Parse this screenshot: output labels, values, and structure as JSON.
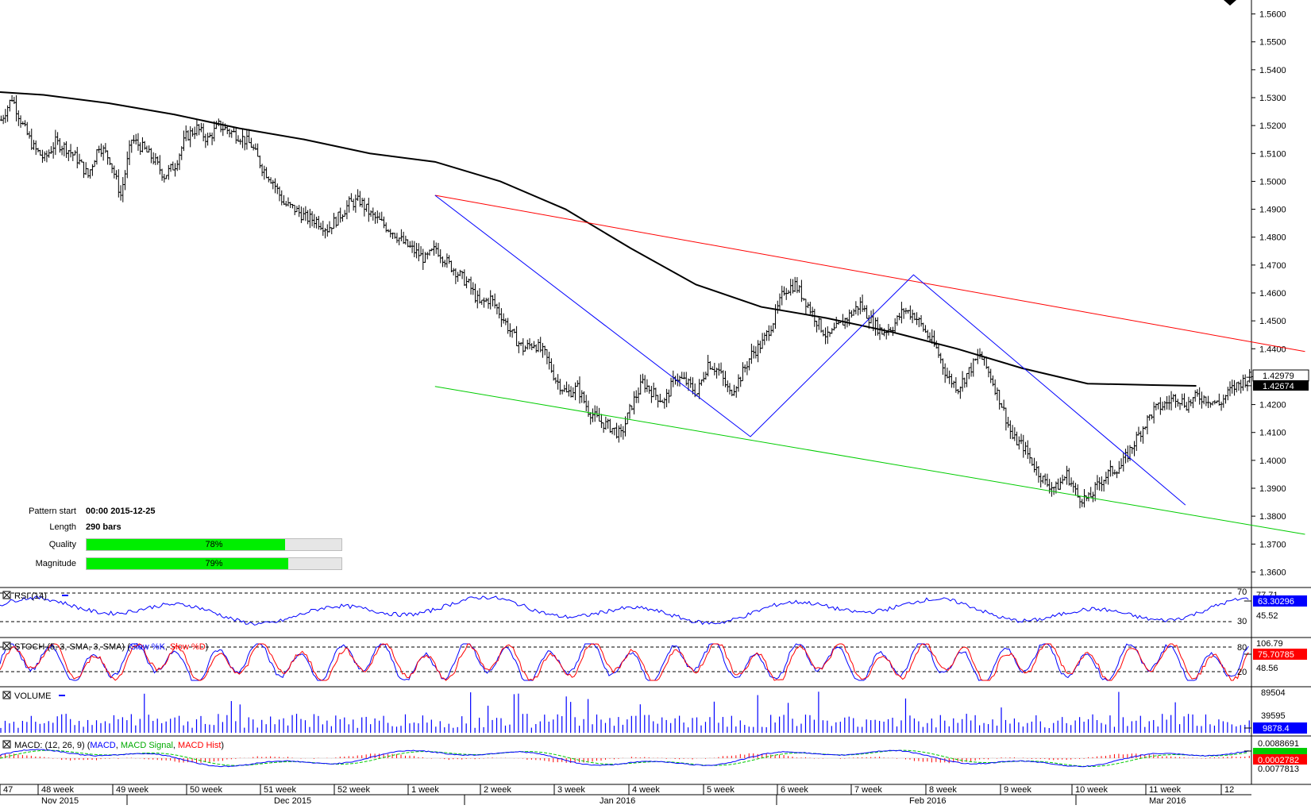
{
  "chart_data": {
    "type": "line",
    "main": {
      "ylim": [
        1.355,
        1.565
      ],
      "price_ticks": [
        "1.5600",
        "1.5500",
        "1.5400",
        "1.5300",
        "1.5200",
        "1.5100",
        "1.5000",
        "1.4900",
        "1.4800",
        "1.4700",
        "1.4600",
        "1.4500",
        "1.4400",
        "1.4300",
        "1.4200",
        "1.4100",
        "1.4000",
        "1.3900",
        "1.3800",
        "1.3700",
        "1.3600"
      ],
      "current_price_label": "1.42979",
      "current_price": 1.42979,
      "ma_value_label": "1.42674",
      "ma_value": 1.42674,
      "ma_series": [
        [
          0,
          1.532
        ],
        [
          20,
          1.531
        ],
        [
          50,
          1.528
        ],
        [
          80,
          1.524
        ],
        [
          110,
          1.519
        ],
        [
          140,
          1.515
        ],
        [
          170,
          1.51
        ],
        [
          200,
          1.507
        ],
        [
          230,
          1.5
        ],
        [
          260,
          1.49
        ],
        [
          290,
          1.476
        ],
        [
          320,
          1.463
        ],
        [
          350,
          1.455
        ],
        [
          380,
          1.451
        ],
        [
          410,
          1.446
        ],
        [
          440,
          1.44
        ],
        [
          470,
          1.433
        ],
        [
          500,
          1.4275
        ],
        [
          530,
          1.427
        ],
        [
          550,
          1.4267
        ]
      ],
      "bar_path": [
        [
          0,
          1.522
        ],
        [
          5,
          1.53
        ],
        [
          10,
          1.52
        ],
        [
          15,
          1.512
        ],
        [
          20,
          1.508
        ],
        [
          25,
          1.514
        ],
        [
          30,
          1.512
        ],
        [
          35,
          1.508
        ],
        [
          40,
          1.502
        ],
        [
          45,
          1.513
        ],
        [
          50,
          1.508
        ],
        [
          55,
          1.495
        ],
        [
          60,
          1.515
        ],
        [
          65,
          1.512
        ],
        [
          70,
          1.508
        ],
        [
          75,
          1.502
        ],
        [
          80,
          1.506
        ],
        [
          85,
          1.516
        ],
        [
          90,
          1.519
        ],
        [
          95,
          1.515
        ],
        [
          100,
          1.52
        ],
        [
          105,
          1.518
        ],
        [
          110,
          1.516
        ],
        [
          115,
          1.513
        ],
        [
          120,
          1.505
        ],
        [
          125,
          1.5
        ],
        [
          130,
          1.492
        ],
        [
          135,
          1.49
        ],
        [
          140,
          1.487
        ],
        [
          145,
          1.486
        ],
        [
          150,
          1.483
        ],
        [
          155,
          1.487
        ],
        [
          160,
          1.492
        ],
        [
          165,
          1.493
        ],
        [
          170,
          1.488
        ],
        [
          175,
          1.485
        ],
        [
          180,
          1.482
        ],
        [
          185,
          1.478
        ],
        [
          190,
          1.475
        ],
        [
          195,
          1.472
        ],
        [
          200,
          1.476
        ],
        [
          205,
          1.471
        ],
        [
          210,
          1.467
        ],
        [
          215,
          1.463
        ],
        [
          220,
          1.456
        ],
        [
          225,
          1.458
        ],
        [
          230,
          1.452
        ],
        [
          235,
          1.445
        ],
        [
          240,
          1.44
        ],
        [
          245,
          1.442
        ],
        [
          250,
          1.438
        ],
        [
          255,
          1.429
        ],
        [
          260,
          1.424
        ],
        [
          265,
          1.426
        ],
        [
          270,
          1.418
        ],
        [
          275,
          1.414
        ],
        [
          280,
          1.412
        ],
        [
          285,
          1.409
        ],
        [
          290,
          1.42
        ],
        [
          295,
          1.428
        ],
        [
          300,
          1.424
        ],
        [
          305,
          1.421
        ],
        [
          310,
          1.43
        ],
        [
          315,
          1.428
        ],
        [
          320,
          1.424
        ],
        [
          325,
          1.435
        ],
        [
          330,
          1.432
        ],
        [
          335,
          1.424
        ],
        [
          340,
          1.43
        ],
        [
          345,
          1.438
        ],
        [
          350,
          1.442
        ],
        [
          355,
          1.45
        ],
        [
          360,
          1.461
        ],
        [
          365,
          1.463
        ],
        [
          370,
          1.457
        ],
        [
          375,
          1.45
        ],
        [
          380,
          1.444
        ],
        [
          385,
          1.448
        ],
        [
          390,
          1.452
        ],
        [
          395,
          1.456
        ],
        [
          400,
          1.45
        ],
        [
          405,
          1.446
        ],
        [
          410,
          1.448
        ],
        [
          415,
          1.454
        ],
        [
          420,
          1.452
        ],
        [
          425,
          1.446
        ],
        [
          430,
          1.44
        ],
        [
          435,
          1.43
        ],
        [
          440,
          1.426
        ],
        [
          445,
          1.432
        ],
        [
          450,
          1.438
        ],
        [
          455,
          1.43
        ],
        [
          460,
          1.42
        ],
        [
          465,
          1.408
        ],
        [
          470,
          1.405
        ],
        [
          475,
          1.398
        ],
        [
          480,
          1.392
        ],
        [
          485,
          1.39
        ],
        [
          490,
          1.395
        ],
        [
          495,
          1.387
        ],
        [
          500,
          1.386
        ],
        [
          505,
          1.392
        ],
        [
          510,
          1.396
        ],
        [
          515,
          1.398
        ],
        [
          520,
          1.405
        ],
        [
          525,
          1.412
        ],
        [
          530,
          1.418
        ],
        [
          535,
          1.42
        ],
        [
          540,
          1.423
        ],
        [
          545,
          1.42
        ],
        [
          550,
          1.423
        ],
        [
          555,
          1.422
        ],
        [
          560,
          1.42
        ],
        [
          565,
          1.425
        ],
        [
          570,
          1.428
        ],
        [
          574,
          1.4298
        ]
      ],
      "resistance_line": [
        [
          200,
          1.495
        ],
        [
          600,
          1.439
        ]
      ],
      "support_line": [
        [
          200,
          1.4265
        ],
        [
          600,
          1.3735
        ]
      ],
      "pattern_zigzag": [
        [
          200,
          1.495
        ],
        [
          345,
          1.4085
        ],
        [
          420,
          1.4665
        ],
        [
          545,
          1.384
        ]
      ]
    },
    "time_axis": {
      "week_labels": [
        "47",
        "48 week",
        "49 week",
        "50 week",
        "51 week",
        "52 week",
        "1 week",
        "2 week",
        "3 week",
        "4 week",
        "5 week",
        "6 week",
        "7 week",
        "8 week",
        "9 week",
        "10 week",
        "11 week",
        "12"
      ],
      "month_labels": [
        "Nov 2015",
        "Dec 2015",
        "Jan 2016",
        "Feb 2016",
        "Mar 2016"
      ]
    },
    "indicators": {
      "rsi": {
        "title": "RSI (14)",
        "value_label": "63.30296",
        "value": 63.30296,
        "levels": [
          70,
          30
        ],
        "level_labels": [
          "70",
          "30"
        ],
        "top_label": "77.71",
        "bottom_label": "45.52",
        "color": "#0000ff"
      },
      "stoch": {
        "title_prefix": "STOCH (5, 3, SMA, 3, SMA) (",
        "title_k": "Slow %K",
        "title_sep": ", ",
        "title_d": "Slow %D",
        "title_suffix": ")",
        "value_label": "75.70785",
        "value": 75.70785,
        "levels": [
          80,
          20
        ],
        "level_labels": [
          "80",
          "20"
        ],
        "top_label": "106.79",
        "bottom_label": "48.56",
        "k_color": "#0000ff",
        "d_color": "#ff0000"
      },
      "volume": {
        "title": "VOLUME",
        "value_label": "9878.4",
        "value": 9878.4,
        "tick_labels": [
          "89504",
          "39595"
        ],
        "color": "#0000ff"
      },
      "macd": {
        "title_prefix": "MACD: (12, 26, 9) (",
        "title_macd": "MACD",
        "title_signal": "MACD Signal",
        "title_hist": "MACD Hist",
        "title_sep": ", ",
        "title_suffix": ")",
        "value_label": "0.0002782",
        "value": 0.0002782,
        "top_label": "0.0088691",
        "bottom_label": "0.0077813",
        "macd_color": "#0000ff",
        "signal_color": "#00cc00",
        "hist_color": "#ff0000"
      }
    }
  },
  "pattern_info": {
    "pattern_start_label": "Pattern start",
    "pattern_start_value": "00:00 2015-12-25",
    "length_label": "Length",
    "length_value": "290 bars",
    "quality_label": "Quality",
    "quality_value": "78%",
    "quality_fraction": 0.78,
    "magnitude_label": "Magnitude",
    "magnitude_value": "79%",
    "magnitude_fraction": 0.79
  }
}
